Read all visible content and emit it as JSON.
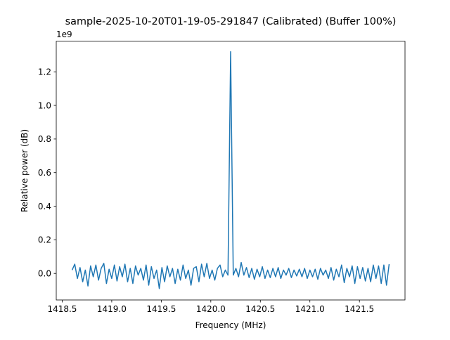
{
  "chart_data": {
    "type": "line",
    "title": "sample-2025-10-20T01-19-05-291847 (Calibrated) (Buffer 100%)",
    "xlabel": "Frequency (MHz)",
    "ylabel": "Relative power (dB)",
    "y_offset_label": "1e9",
    "xlim": [
      1418.44,
      1421.96
    ],
    "ylim": [
      -0.158,
      1.382
    ],
    "y_scale_factor": 1000000000.0,
    "xticks": [
      1418.5,
      1419.0,
      1419.5,
      1420.0,
      1420.5,
      1421.0,
      1421.5
    ],
    "xtick_labels": [
      "1418.5",
      "1419.0",
      "1419.5",
      "1420.0",
      "1420.5",
      "1421.0",
      "1421.5"
    ],
    "yticks": [
      0.0,
      0.2,
      0.4,
      0.6,
      0.8,
      1.0,
      1.2
    ],
    "ytick_labels": [
      "0.0",
      "0.2",
      "0.4",
      "0.6",
      "0.8",
      "1.0",
      "1.2"
    ],
    "grid": false,
    "line_color": "#1f77b4",
    "series": [
      {
        "x_start": 1418.6,
        "x_stop": 1421.8,
        "values": [
          0.02,
          0.055,
          -0.03,
          0.035,
          -0.05,
          0.02,
          -0.075,
          0.045,
          -0.02,
          0.05,
          -0.04,
          0.03,
          0.06,
          -0.06,
          0.025,
          -0.03,
          0.05,
          -0.045,
          0.04,
          -0.02,
          0.055,
          -0.05,
          0.03,
          -0.06,
          0.045,
          -0.01,
          0.03,
          -0.04,
          0.05,
          -0.07,
          0.04,
          -0.03,
          0.02,
          -0.09,
          0.035,
          -0.05,
          0.045,
          -0.02,
          0.03,
          -0.06,
          0.025,
          -0.04,
          0.05,
          -0.03,
          0.02,
          -0.07,
          0.03,
          0.04,
          -0.05,
          0.055,
          -0.02,
          0.06,
          -0.03,
          0.02,
          -0.04,
          0.03,
          0.05,
          -0.02,
          0.02,
          -0.01,
          1.32,
          -0.01,
          0.03,
          -0.02,
          0.065,
          -0.01,
          0.035,
          -0.025,
          0.03,
          -0.035,
          0.025,
          -0.02,
          0.04,
          -0.03,
          0.02,
          -0.025,
          0.03,
          -0.02,
          0.035,
          -0.03,
          0.02,
          -0.01,
          0.03,
          -0.025,
          0.02,
          -0.015,
          0.025,
          -0.02,
          0.03,
          -0.03,
          0.02,
          -0.02,
          0.025,
          -0.035,
          0.03,
          -0.01,
          0.02,
          -0.03,
          0.035,
          -0.04,
          0.025,
          -0.02,
          0.05,
          -0.055,
          0.03,
          -0.02,
          0.045,
          -0.06,
          0.04,
          -0.03,
          0.035,
          -0.045,
          0.03,
          -0.05,
          0.05,
          -0.03,
          0.045,
          -0.06,
          0.05,
          -0.07,
          0.055
        ]
      }
    ]
  }
}
